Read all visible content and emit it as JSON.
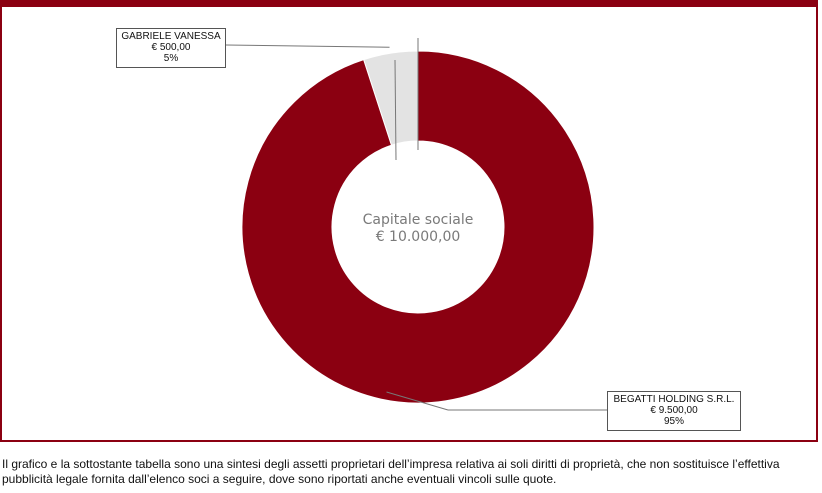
{
  "chart_data": {
    "type": "pie",
    "center_label": [
      "Capitale sociale",
      "€ 10.000,00"
    ],
    "slices": [
      {
        "label": "GABRIELE VANESSA",
        "amount": "€ 500,00",
        "percent_label": "5%",
        "value": 5,
        "color": "#e3e3e3"
      },
      {
        "label": "BEGATTI HOLDING S.R.L.",
        "amount": "€ 9.500,00",
        "percent_label": "95%",
        "value": 95,
        "color": "#8b0011"
      }
    ]
  },
  "footnote": "Il grafico e la sottostante tabella sono una sintesi degli assetti proprietari dell’impresa relativa ai soli diritti di proprietà, che non sostituisce l’effettiva pubblicità legale fornita dall’elenco soci a seguire, dove sono riportati anche eventuali vincoli sulle quote.",
  "colors": {
    "frame": "#8b0011"
  }
}
